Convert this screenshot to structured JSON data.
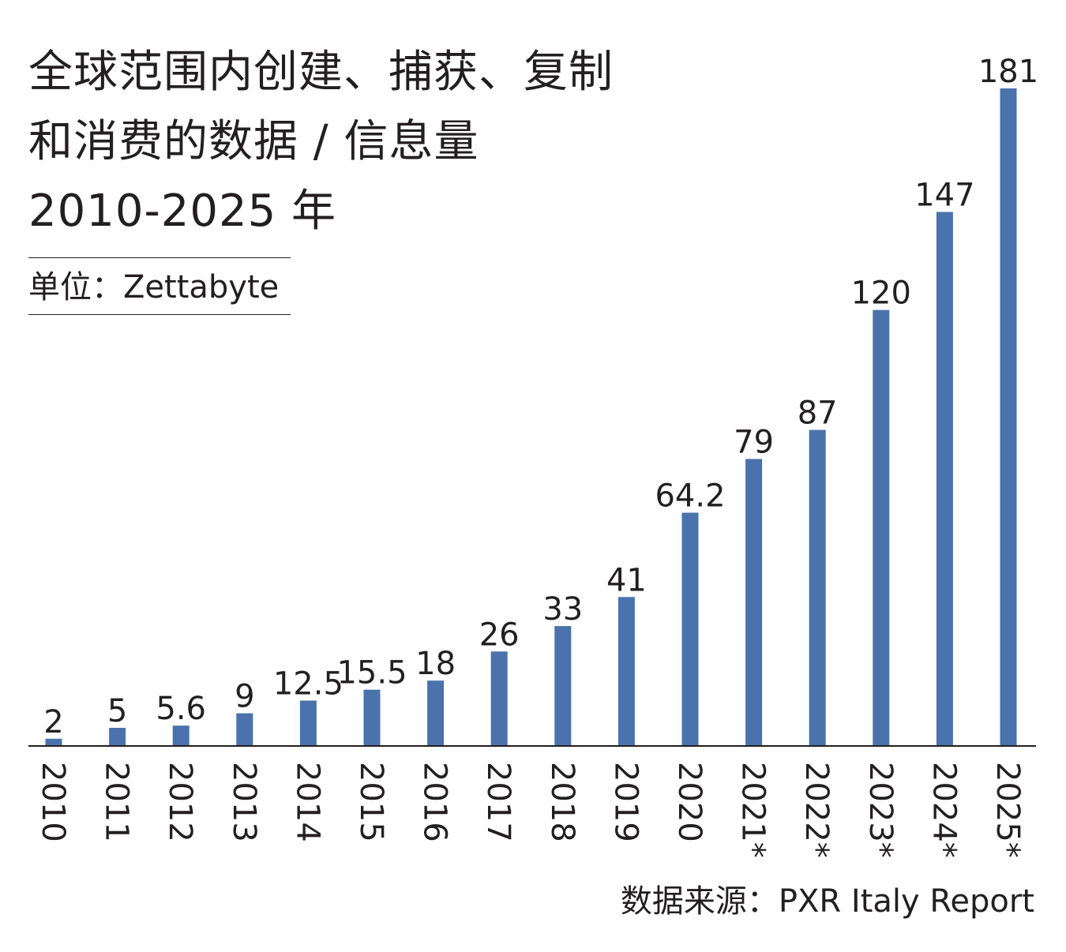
{
  "title": {
    "line1": "全球范围内创建、捕获、复制",
    "line2": "和消费的数据 / 信息量",
    "line3": "2010-2025 年"
  },
  "unit_label": "单位：Zettabyte",
  "source_label": "数据来源：PXR Italy Report",
  "colors": {
    "bar": "#4a72ad",
    "axis": "#231f20",
    "text": "#231f20"
  },
  "chart_data": {
    "type": "bar",
    "title": "全球范围内创建、捕获、复制和消费的数据 / 信息量 2010-2025 年",
    "ylabel": "单位：Zettabyte",
    "xlabel": "",
    "categories": [
      "2010",
      "2011",
      "2012",
      "2013",
      "2014",
      "2015",
      "2016",
      "2017",
      "2018",
      "2019",
      "2020",
      "2021*",
      "2022*",
      "2023*",
      "2024*",
      "2025*"
    ],
    "values": [
      2,
      5,
      5.6,
      9,
      12.5,
      15.5,
      18,
      26,
      33,
      41,
      64.2,
      79,
      87,
      120,
      147,
      181
    ],
    "value_labels": [
      "2",
      "5",
      "5.6",
      "9",
      "12.5",
      "15.5",
      "18",
      "26",
      "33",
      "41",
      "64.2",
      "79",
      "87",
      "120",
      "147",
      "181"
    ],
    "ylim": [
      0,
      181
    ],
    "grid": false,
    "legend": "none",
    "x_tick_rotation": "vertical"
  }
}
